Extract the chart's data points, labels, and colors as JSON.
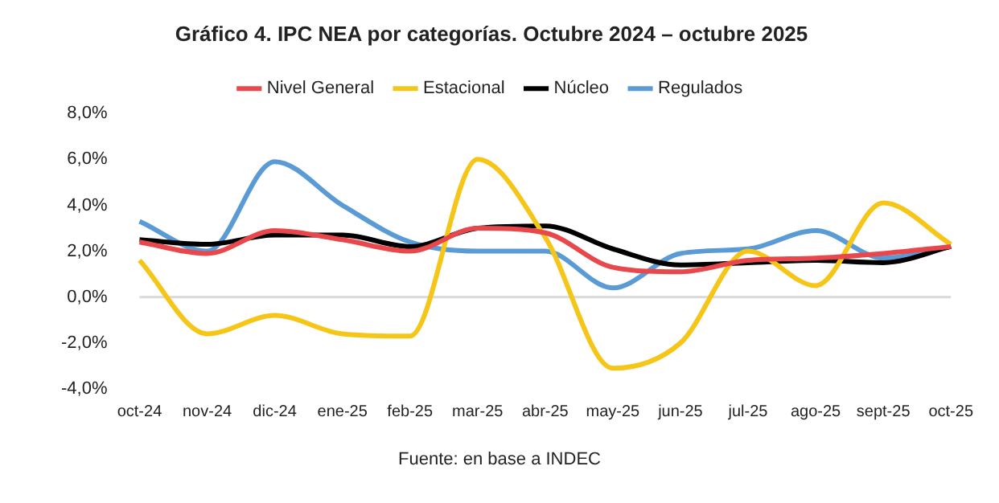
{
  "chart_data": {
    "type": "line",
    "title": "Gráfico 4. IPC NEA por categorías. Octubre 2024 – octubre 2025",
    "categories": [
      "oct-24",
      "nov-24",
      "dic-24",
      "ene-25",
      "feb-25",
      "mar-25",
      "abr-25",
      "may-25",
      "jun-25",
      "jul-25",
      "ago-25",
      "sept-25",
      "oct-25"
    ],
    "series": [
      {
        "name": "Nivel General",
        "color": "#e8474b",
        "values": [
          2.4,
          1.9,
          2.9,
          2.5,
          2.0,
          3.0,
          2.8,
          1.3,
          1.1,
          1.6,
          1.7,
          1.9,
          2.2
        ]
      },
      {
        "name": "Estacional",
        "color": "#f5c518",
        "values": [
          1.6,
          -1.6,
          -0.8,
          -1.6,
          -1.7,
          6.0,
          2.6,
          -3.1,
          -2.0,
          2.0,
          0.5,
          4.1,
          2.3
        ]
      },
      {
        "name": "Núcleo",
        "color": "#000000",
        "values": [
          2.5,
          2.3,
          2.7,
          2.7,
          2.2,
          3.0,
          3.1,
          2.1,
          1.4,
          1.5,
          1.6,
          1.5,
          2.2
        ]
      },
      {
        "name": "Regulados",
        "color": "#5b9bd5",
        "values": [
          3.3,
          2.0,
          5.9,
          4.0,
          2.4,
          2.0,
          2.0,
          0.4,
          1.9,
          2.1,
          2.9,
          1.7,
          2.2
        ]
      }
    ],
    "ylim": [
      -4,
      8
    ],
    "yticks": [
      {
        "value": -4,
        "label": "-4,0%"
      },
      {
        "value": -2,
        "label": "-2,0%"
      },
      {
        "value": 0,
        "label": "0,0%"
      },
      {
        "value": 2,
        "label": "2,0%"
      },
      {
        "value": 4,
        "label": "4,0%"
      },
      {
        "value": 6,
        "label": "6,0%"
      },
      {
        "value": 8,
        "label": "8,0%"
      }
    ],
    "grid": false,
    "ref_lines": [
      {
        "axis": "y",
        "value": 0,
        "color": "#d9d9d9"
      }
    ],
    "legend": "top",
    "marker": "none",
    "line_style": "solid",
    "annotations": [
      "Fuente: en base a INDEC"
    ]
  }
}
